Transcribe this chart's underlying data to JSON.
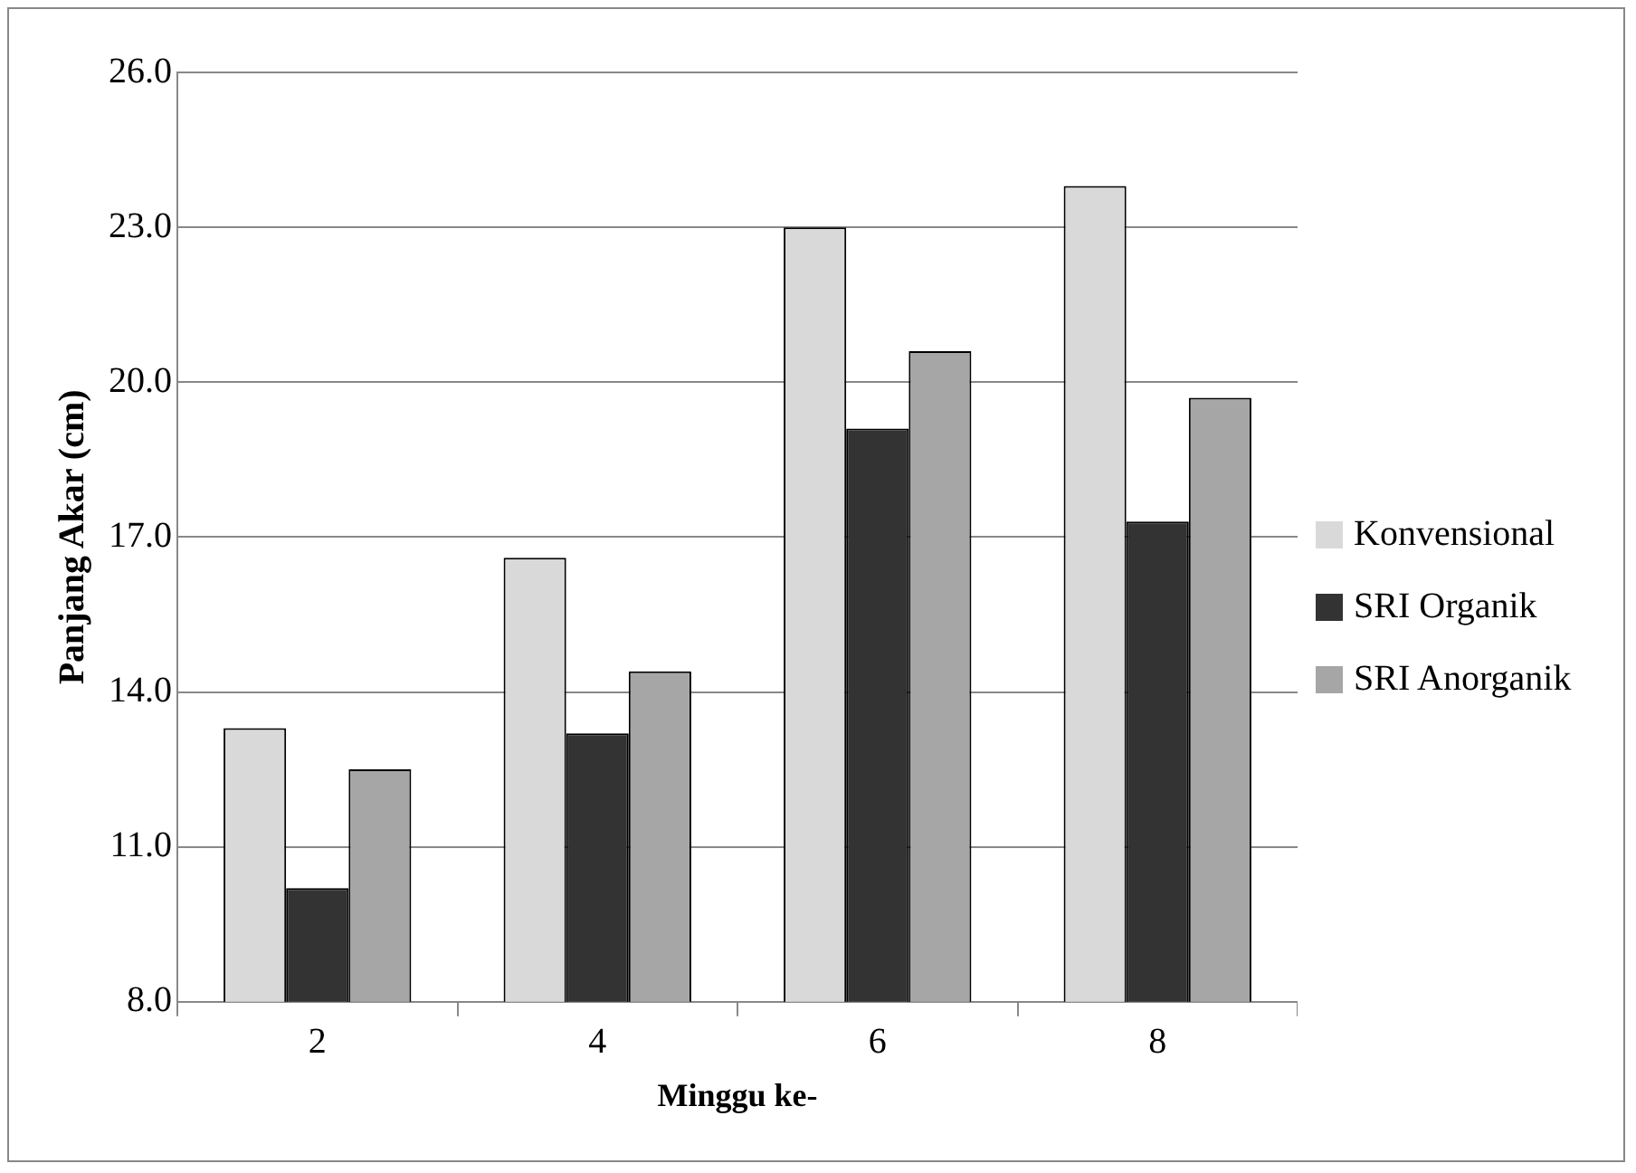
{
  "chart_data": {
    "type": "bar",
    "xlabel": "Minggu ke-",
    "ylabel": "Panjang Akar (cm)",
    "categories": [
      "2",
      "4",
      "6",
      "8"
    ],
    "series": [
      {
        "name": "Konvensional",
        "color": "#d9d9d9",
        "values": [
          13.3,
          16.6,
          23.0,
          23.8
        ]
      },
      {
        "name": "SRI Organik",
        "color": "#333333",
        "values": [
          10.2,
          13.2,
          19.1,
          17.3
        ]
      },
      {
        "name": "SRI Anorganik",
        "color": "#a6a6a6",
        "values": [
          12.5,
          14.4,
          20.6,
          19.7
        ]
      }
    ],
    "ylim": [
      8,
      26
    ],
    "yticks": [
      {
        "value": 8,
        "label": "8.0"
      },
      {
        "value": 11,
        "label": "11.0"
      },
      {
        "value": 14,
        "label": "14.0"
      },
      {
        "value": 17,
        "label": "17.0"
      },
      {
        "value": 20,
        "label": "20.0"
      },
      {
        "value": 23,
        "label": "23.0"
      },
      {
        "value": 26,
        "label": "26.0"
      }
    ],
    "grid": "y",
    "legend": "right"
  }
}
